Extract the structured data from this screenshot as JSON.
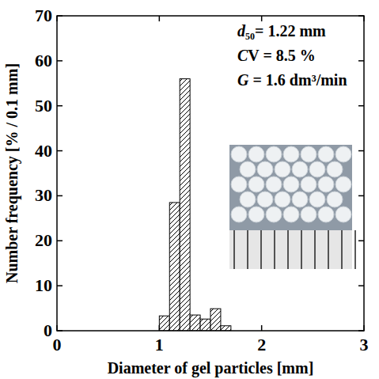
{
  "chart_data": {
    "type": "histogram",
    "x_label": "Diameter of gel particles [mm]",
    "y_label": "Number frequency [% / 0.1 mm]",
    "annotations": [
      "d₅₀= 1.22 mm",
      "CV = 8.5 %",
      "G = 1.6 dm³/min"
    ],
    "bins": [
      1.0,
      1.1,
      1.2,
      1.3,
      1.4,
      1.5,
      1.6,
      1.7
    ],
    "values": [
      3.3,
      28.5,
      56,
      3.5,
      2.6,
      4.9,
      1.1
    ],
    "color": "#000000",
    "xlim": [
      0,
      3
    ],
    "ylim": [
      0,
      70
    ],
    "xticks": [
      0,
      1,
      2,
      3
    ],
    "yticks": [
      0,
      10,
      20,
      30,
      40,
      50,
      60,
      70
    ],
    "grid": false
  }
}
